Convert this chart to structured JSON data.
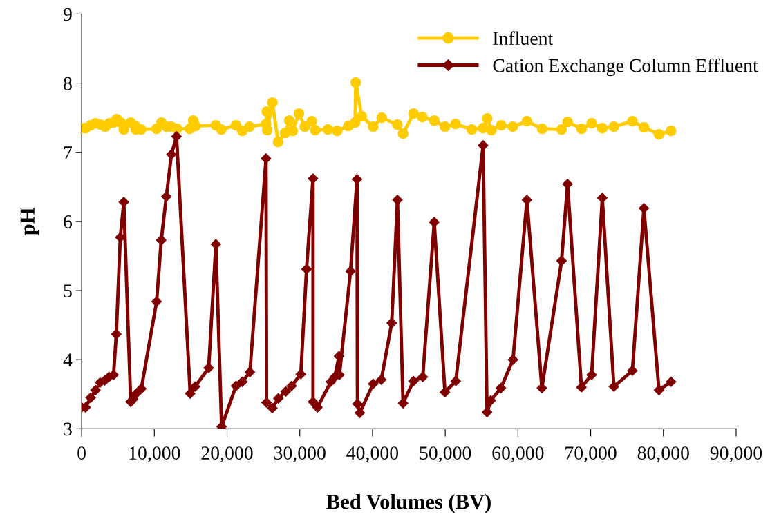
{
  "chart_data": {
    "type": "line",
    "xlabel": "Bed Volumes (BV)",
    "ylabel": "pH",
    "xlim": [
      0,
      90000
    ],
    "xticks": [
      {
        "value": 0,
        "label": "0"
      },
      {
        "value": 10000,
        "label": "10,000"
      },
      {
        "value": 20000,
        "label": "20,000"
      },
      {
        "value": 30000,
        "label": "30,000"
      },
      {
        "value": 40000,
        "label": "40,000"
      },
      {
        "value": 50000,
        "label": "50,000"
      },
      {
        "value": 60000,
        "label": "60,000"
      },
      {
        "value": 70000,
        "label": "70,000"
      },
      {
        "value": 80000,
        "label": "80,000"
      },
      {
        "value": 90000,
        "label": "90,000"
      }
    ],
    "ylim": [
      3,
      9
    ],
    "yticks": [
      3,
      4,
      5,
      6,
      7,
      8,
      9
    ],
    "grid": false,
    "legend": "top right",
    "line_style": "solid",
    "series": [
      {
        "name": "Influent",
        "color": "#ffcc00",
        "marker": "circle",
        "x": [
          0,
          545,
          1240,
          1910,
          2610,
          3250,
          3820,
          4360,
          4840,
          5410,
          5800,
          6750,
          7390,
          7450,
          8180,
          10310,
          10980,
          11680,
          12320,
          13110,
          14860,
          15340,
          15660,
          18460,
          19220,
          21230,
          22090,
          23080,
          25370,
          25460,
          25530,
          26230,
          27020,
          27980,
          28550,
          29020,
          29880,
          30680,
          31640,
          32120,
          33870,
          35140,
          36670,
          37600,
          37700,
          38510,
          40090,
          41270,
          43410,
          44200,
          45640,
          46850,
          48500,
          49960,
          51420,
          53650,
          55200,
          55770,
          56350,
          57690,
          59280,
          61230,
          63330,
          66000,
          66830,
          68740,
          70140,
          71600,
          73190,
          75740,
          77330,
          79400,
          81050
        ],
        "values": [
          7.35,
          7.35,
          7.39,
          7.42,
          7.4,
          7.37,
          7.42,
          7.43,
          7.48,
          7.43,
          7.33,
          7.43,
          7.38,
          7.33,
          7.33,
          7.34,
          7.43,
          7.37,
          7.37,
          7.34,
          7.34,
          7.46,
          7.38,
          7.39,
          7.33,
          7.39,
          7.31,
          7.37,
          7.41,
          7.59,
          7.32,
          7.72,
          7.15,
          7.28,
          7.46,
          7.31,
          7.56,
          7.37,
          7.45,
          7.32,
          7.33,
          7.31,
          7.38,
          7.43,
          8.01,
          7.52,
          7.37,
          7.5,
          7.4,
          7.27,
          7.56,
          7.51,
          7.46,
          7.37,
          7.41,
          7.33,
          7.35,
          7.49,
          7.32,
          7.39,
          7.37,
          7.45,
          7.34,
          7.33,
          7.44,
          7.34,
          7.42,
          7.35,
          7.37,
          7.45,
          7.36,
          7.26,
          7.31
        ]
      },
      {
        "name": "Cation Exchange Column Effluent",
        "color": "#800000",
        "marker": "diamond",
        "x": [
          0,
          540,
          1240,
          1910,
          2550,
          3190,
          3760,
          4390,
          4770,
          5320,
          5800,
          6750,
          7090,
          7510,
          8210,
          10310,
          10950,
          11650,
          12350,
          13050,
          14930,
          15600,
          17470,
          18460,
          19250,
          21230,
          22090,
          23140,
          25360,
          25430,
          26220,
          27050,
          28070,
          28870,
          30140,
          30930,
          31820,
          31820,
          32430,
          34270,
          34810,
          35390,
          35450,
          36980,
          37870,
          37930,
          38250,
          40090,
          41210,
          42640,
          43430,
          44200,
          45630,
          46910,
          48490,
          49960,
          51450,
          55210,
          55750,
          56260,
          57660,
          59320,
          61230,
          63290,
          66000,
          66820,
          68730,
          70130,
          71600,
          73190,
          75740,
          77320,
          79390,
          81050
        ],
        "values": [
          3.31,
          3.31,
          3.45,
          3.56,
          3.67,
          3.7,
          3.75,
          3.78,
          4.37,
          5.77,
          6.28,
          3.39,
          3.43,
          3.51,
          3.58,
          4.84,
          5.73,
          6.36,
          6.97,
          7.23,
          3.51,
          3.61,
          3.88,
          5.67,
          3.03,
          3.62,
          3.68,
          3.82,
          6.91,
          3.38,
          3.3,
          3.44,
          3.54,
          3.62,
          3.79,
          5.31,
          6.62,
          3.39,
          3.31,
          3.68,
          3.75,
          4.05,
          3.78,
          5.28,
          6.61,
          3.36,
          3.23,
          3.65,
          3.71,
          4.53,
          6.31,
          3.37,
          3.69,
          3.75,
          5.99,
          3.53,
          3.69,
          7.1,
          3.24,
          3.41,
          3.59,
          4.0,
          6.31,
          3.59,
          5.43,
          6.54,
          3.6,
          3.78,
          6.34,
          3.61,
          3.84,
          6.19,
          3.56,
          3.68
        ]
      }
    ]
  }
}
